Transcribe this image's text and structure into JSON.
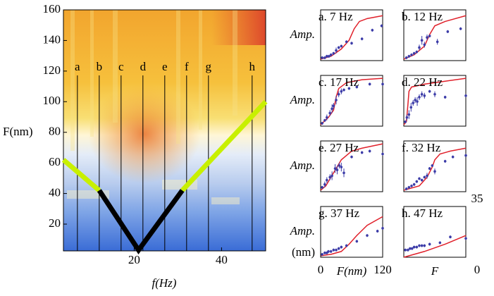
{
  "chart_data": [
    {
      "type": "heatmap",
      "ylabel": "F(nm)",
      "xlabel": "f(Hz)",
      "xlim": [
        3.8,
        50.1
      ],
      "ylim": [
        2.5,
        160
      ],
      "xticks": [
        20,
        40
      ],
      "yticks": [
        20,
        40,
        60,
        80,
        100,
        120,
        140,
        160
      ],
      "vlines": {
        "labels": [
          "a",
          "b",
          "c",
          "d",
          "e",
          "f",
          "g",
          "h"
        ],
        "x": [
          7,
          12,
          17,
          22,
          27,
          32,
          37,
          47
        ]
      },
      "lines": [
        {
          "color": "#c8f000",
          "x": [
            3.8,
            12
          ],
          "y": [
            62,
            42
          ]
        },
        {
          "color": "#c8f000",
          "x": [
            31,
            50.1
          ],
          "y": [
            42,
            100
          ]
        },
        {
          "color": "#000000",
          "x": [
            12,
            21,
            31
          ],
          "y": [
            42,
            3,
            42
          ]
        }
      ]
    },
    {
      "type": "scatter",
      "title": "a. 7 Hz",
      "ylabel": "Amp.",
      "xlim": [
        0,
        120
      ],
      "ylim": [
        0,
        35
      ],
      "point_color": "#3c3ca8",
      "curve_color": "#e0202a",
      "points": {
        "x": [
          3,
          8,
          12,
          16,
          20,
          25,
          30,
          35,
          40,
          50,
          60,
          80,
          100,
          118
        ],
        "y": [
          2,
          2,
          3,
          3,
          4,
          5,
          7,
          9,
          10,
          13,
          12,
          15,
          21,
          24
        ],
        "err": [
          1,
          1,
          1,
          1,
          1,
          1,
          2,
          1,
          1,
          1,
          1,
          1,
          1,
          1
        ]
      },
      "curve": {
        "x": [
          0,
          20,
          40,
          55,
          65,
          75,
          90,
          120
        ],
        "y": [
          1,
          3,
          8,
          14,
          22,
          27,
          29,
          31
        ]
      }
    },
    {
      "type": "scatter",
      "title": "b. 12 Hz",
      "xlim": [
        0,
        120
      ],
      "ylim": [
        0,
        35
      ],
      "point_color": "#3c3ca8",
      "curve_color": "#e0202a",
      "points": {
        "x": [
          5,
          10,
          15,
          20,
          25,
          30,
          35,
          40,
          45,
          50,
          65,
          85,
          110
        ],
        "y": [
          2,
          3,
          4,
          5,
          6,
          9,
          14,
          11,
          16,
          17,
          13,
          20,
          22
        ],
        "err": [
          1,
          1,
          1,
          1,
          1,
          2,
          3,
          2,
          2,
          1,
          2,
          1,
          1
        ]
      },
      "curve": {
        "x": [
          0,
          20,
          40,
          50,
          60,
          80,
          120
        ],
        "y": [
          1,
          4,
          10,
          18,
          24,
          27,
          31
        ]
      }
    },
    {
      "type": "scatter",
      "title": "c. 17 Hz",
      "ylabel": "Amp.",
      "xlim": [
        0,
        120
      ],
      "ylim": [
        0,
        35
      ],
      "point_color": "#3c3ca8",
      "curve_color": "#e0202a",
      "points": {
        "x": [
          3,
          8,
          12,
          18,
          22,
          25,
          30,
          35,
          40,
          45,
          55,
          70,
          95,
          120
        ],
        "y": [
          2,
          4,
          6,
          9,
          12,
          14,
          18,
          22,
          24,
          25,
          26,
          27,
          29,
          29
        ],
        "err": [
          1,
          1,
          2,
          2,
          3,
          2,
          3,
          2,
          2,
          1,
          1,
          1,
          1,
          1
        ]
      },
      "curve": {
        "x": [
          0,
          15,
          25,
          30,
          35,
          50,
          80,
          120
        ],
        "y": [
          1,
          6,
          11,
          20,
          26,
          30,
          32,
          33
        ]
      }
    },
    {
      "type": "scatter",
      "title": "d. 22 Hz",
      "xlim": [
        0,
        120
      ],
      "ylim": [
        0,
        35
      ],
      "point_color": "#3c3ca8",
      "curve_color": "#e0202a",
      "points": {
        "x": [
          3,
          6,
          10,
          14,
          18,
          22,
          26,
          30,
          35,
          40,
          50,
          60,
          80,
          120
        ],
        "y": [
          3,
          6,
          8,
          13,
          16,
          18,
          17,
          20,
          22,
          21,
          24,
          22,
          20,
          21
        ],
        "err": [
          1,
          2,
          3,
          3,
          2,
          2,
          3,
          2,
          2,
          2,
          1,
          2,
          1,
          1
        ]
      },
      "curve": {
        "x": [
          0,
          5,
          8,
          10,
          15,
          40,
          80,
          120
        ],
        "y": [
          1,
          3,
          15,
          24,
          27,
          29,
          31,
          33
        ]
      }
    },
    {
      "type": "scatter",
      "title": "e. 27 Hz",
      "ylabel": "Amp.",
      "xlim": [
        0,
        120
      ],
      "ylim": [
        0,
        35
      ],
      "point_color": "#3c3ca8",
      "curve_color": "#e0202a",
      "points": {
        "x": [
          3,
          8,
          12,
          18,
          22,
          28,
          32,
          36,
          40,
          45,
          60,
          80,
          95,
          120
        ],
        "y": [
          3,
          5,
          8,
          10,
          11,
          16,
          15,
          18,
          17,
          13,
          24,
          27,
          28,
          26
        ],
        "err": [
          1,
          2,
          2,
          2,
          3,
          3,
          3,
          2,
          3,
          3,
          1,
          1,
          1,
          1
        ]
      },
      "curve": {
        "x": [
          0,
          10,
          20,
          30,
          40,
          50,
          60,
          80,
          120
        ],
        "y": [
          1,
          4,
          10,
          16,
          22,
          25,
          28,
          30,
          33
        ]
      }
    },
    {
      "type": "scatter",
      "title": "f. 32 Hz",
      "xlim": [
        0,
        120
      ],
      "ylim": [
        0,
        35
      ],
      "point_color": "#3c3ca8",
      "curve_color": "#e0202a",
      "points": {
        "x": [
          5,
          10,
          15,
          20,
          25,
          30,
          35,
          40,
          45,
          50,
          55,
          60,
          80,
          95,
          120
        ],
        "y": [
          2,
          3,
          4,
          5,
          7,
          9,
          8,
          10,
          11,
          16,
          18,
          14,
          21,
          24,
          25
        ],
        "err": [
          1,
          1,
          1,
          1,
          1,
          1,
          1,
          1,
          2,
          1,
          1,
          2,
          1,
          1,
          1
        ]
      },
      "curve": {
        "x": [
          0,
          30,
          45,
          55,
          60,
          70,
          90,
          120
        ],
        "y": [
          1,
          4,
          10,
          17,
          22,
          26,
          28,
          30
        ]
      }
    },
    {
      "type": "scatter",
      "title": "g. 37 Hz",
      "ylabel": "Amp.",
      "yunit": "(nm)",
      "xlabel": "F(nm)",
      "xticks": [
        0,
        120
      ],
      "xlim": [
        0,
        120
      ],
      "ylim": [
        0,
        35
      ],
      "point_color": "#3c3ca8",
      "curve_color": "#e0202a",
      "points": {
        "x": [
          3,
          8,
          12,
          15,
          20,
          25,
          30,
          35,
          40,
          50,
          70,
          90,
          110,
          120
        ],
        "y": [
          2,
          3,
          3,
          4,
          4,
          5,
          5,
          6,
          7,
          8,
          11,
          15,
          18,
          20
        ],
        "err": [
          1,
          1,
          1,
          1,
          1,
          1,
          1,
          1,
          1,
          1,
          1,
          1,
          1,
          1
        ]
      },
      "curve": {
        "x": [
          0,
          20,
          40,
          55,
          70,
          90,
          120
        ],
        "y": [
          1,
          2,
          4,
          9,
          15,
          22,
          28
        ]
      }
    },
    {
      "type": "scatter",
      "title": "h. 47 Hz",
      "xlabel": "F",
      "yticks": [
        0,
        35
      ],
      "xlim": [
        0,
        120
      ],
      "ylim": [
        0,
        35
      ],
      "point_color": "#3c3ca8",
      "curve_color": "#e0202a",
      "points": {
        "x": [
          3,
          8,
          12,
          16,
          20,
          25,
          30,
          35,
          40,
          50,
          70,
          90,
          120
        ],
        "y": [
          5,
          5,
          6,
          6,
          7,
          7,
          8,
          8,
          8,
          9,
          10,
          14,
          13
        ],
        "err": [
          1,
          1,
          1,
          1,
          1,
          1,
          1,
          1,
          1,
          1,
          1,
          1,
          1
        ]
      },
      "curve": {
        "x": [
          0,
          40,
          80,
          120
        ],
        "y": [
          0,
          4,
          9,
          15
        ]
      }
    }
  ]
}
